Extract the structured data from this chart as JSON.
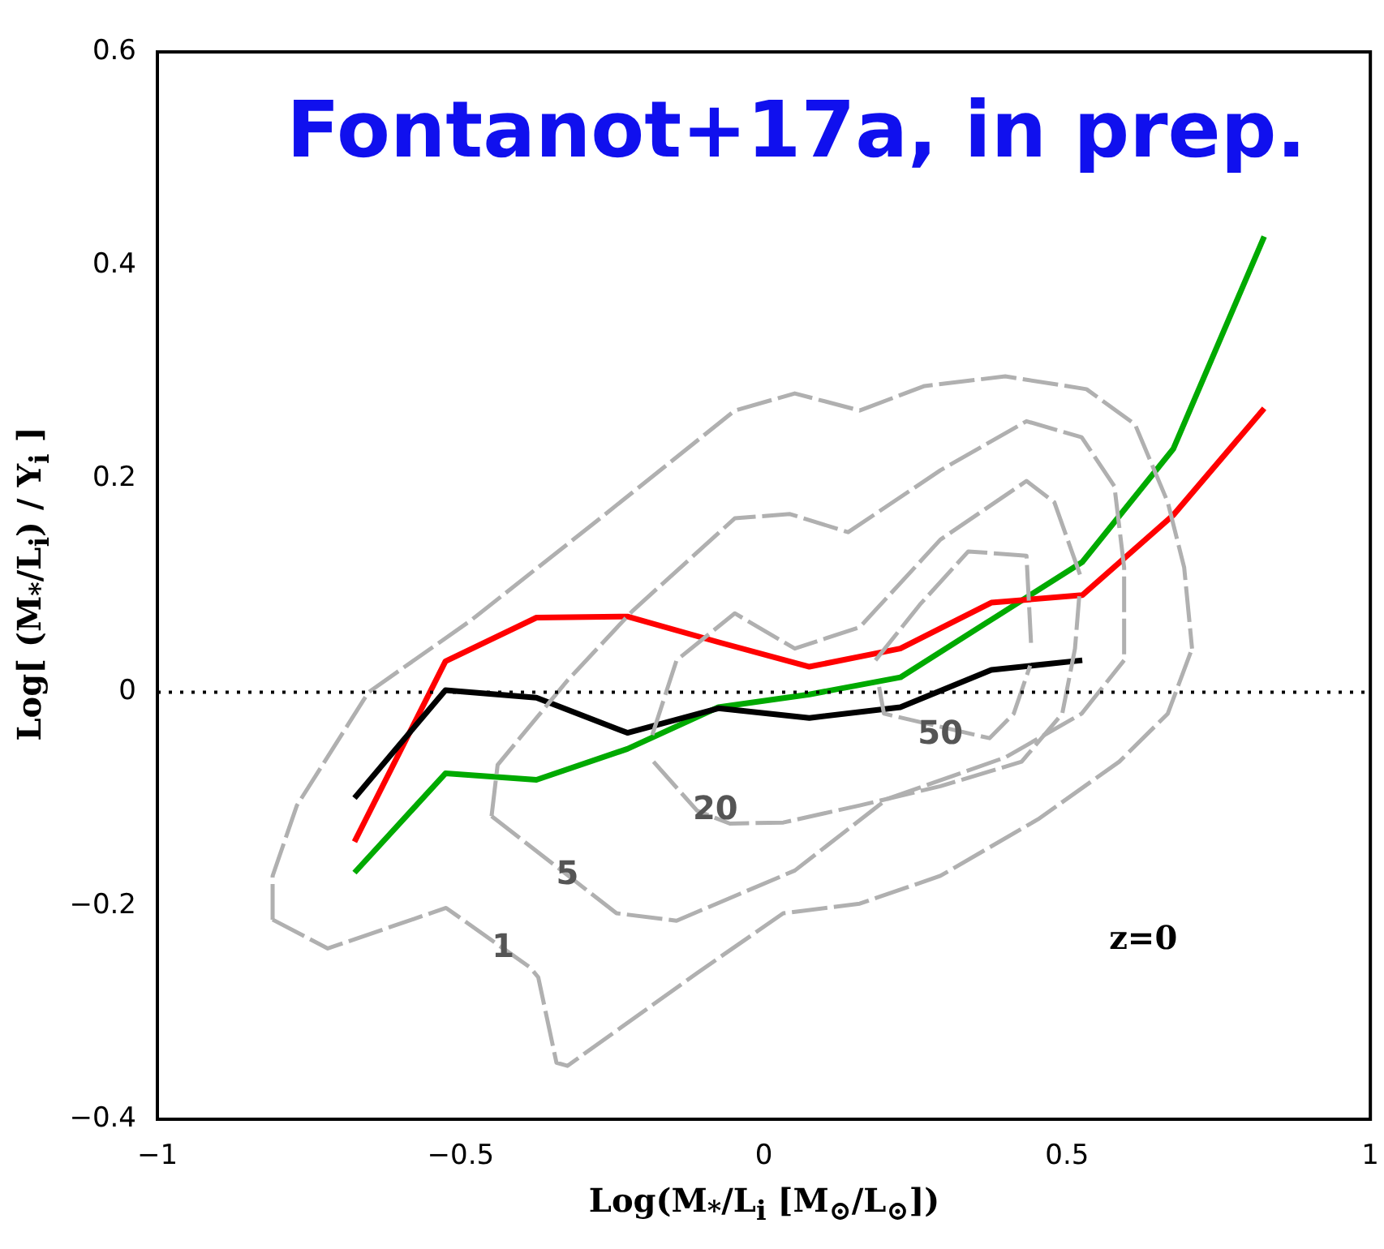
{
  "chart_data": {
    "type": "line",
    "title": "Fontanot+17a, in prep.",
    "xlabel": "Log(M$_{*}$/L$_{i}$ [M$_{⊙}$/L$_{⊙}$])",
    "ylabel": "Log[ (M$_{*}$/L$_{i}$) / Υ$_{i}$ ]",
    "xlim": [
      -1,
      1
    ],
    "xticks": [
      {
        "value": -1,
        "label": "−1"
      },
      {
        "value": -0.5,
        "label": "−0.5"
      },
      0,
      0.5,
      1
    ],
    "ylim": [
      -0.4,
      0.6
    ],
    "yticks": [
      {
        "value": -0.4,
        "label": "−0.4"
      },
      {
        "value": -0.2,
        "label": "−0.2"
      },
      0,
      0.2,
      0.4,
      0.6
    ],
    "grid": false,
    "legend": false,
    "marker": "none",
    "series": [
      {
        "color": "#b0b0b0",
        "line_style": "dashed",
        "x": [
          -0.81,
          -0.81,
          -0.77,
          -0.652,
          -0.484,
          -0.27,
          -0.048,
          0.051,
          0.158,
          0.265,
          0.398,
          0.532,
          0.612,
          0.666,
          0.693,
          0.706
        ],
        "values": [
          -0.213,
          -0.172,
          -0.106,
          0,
          0.067,
          0.163,
          0.264,
          0.28,
          0.264,
          0.287,
          0.296,
          0.284,
          0.251,
          0.178,
          0.117,
          0.041
        ]
      },
      {
        "color": "#b0b0b0",
        "line_style": "dashed",
        "x": [
          -0.81,
          -0.719,
          -0.524,
          -0.385,
          -0.372,
          -0.342,
          -0.324,
          -0.11,
          0.032,
          0.158,
          0.291,
          0.452,
          0.586,
          0.666,
          0.706
        ],
        "values": [
          -0.213,
          -0.24,
          -0.202,
          -0.258,
          -0.267,
          -0.347,
          -0.35,
          -0.263,
          -0.207,
          -0.198,
          -0.172,
          -0.119,
          -0.065,
          -0.02,
          0.041
        ]
      },
      {
        "color": "#b0b0b0",
        "line_style": "dashed",
        "x": [
          -0.449,
          -0.439,
          -0.324,
          -0.217,
          -0.048,
          0.043,
          0.139,
          0.291,
          0.433,
          0.524,
          0.578,
          0.594,
          0.594
        ],
        "values": [
          -0.116,
          -0.068,
          0.011,
          0.076,
          0.163,
          0.167,
          0.15,
          0.208,
          0.254,
          0.239,
          0.193,
          0.117,
          0.03
        ]
      },
      {
        "color": "#b0b0b0",
        "line_style": "dashed",
        "x": [
          -0.449,
          -0.243,
          -0.144,
          0.051,
          0.203,
          0.398,
          0.524,
          0.594
        ],
        "values": [
          -0.116,
          -0.207,
          -0.214,
          -0.167,
          -0.1,
          -0.061,
          -0.02,
          0.03
        ]
      },
      {
        "color": "#b0b0b0",
        "line_style": "dashed",
        "x": [
          -0.184,
          -0.144,
          -0.048,
          0.051,
          0.158,
          0.291,
          0.433,
          0.479,
          0.524
        ],
        "values": [
          -0.04,
          0.03,
          0.074,
          0.041,
          0.061,
          0.143,
          0.198,
          0.178,
          0.106
        ]
      },
      {
        "color": "#b0b0b0",
        "line_style": "dashed",
        "x": [
          -0.182,
          -0.11,
          -0.056,
          0.032,
          0.158,
          0.291,
          0.425,
          0.492,
          0.513,
          0.52
        ],
        "values": [
          -0.065,
          -0.111,
          -0.123,
          -0.122,
          -0.106,
          -0.088,
          -0.065,
          -0.02,
          0.041,
          0.09
        ]
      },
      {
        "color": "#b0b0b0",
        "line_style": "dashed",
        "x": [
          0.184,
          0.257,
          0.337,
          0.433,
          0.441
        ],
        "values": [
          0.03,
          0.082,
          0.132,
          0.128,
          0.041
        ]
      },
      {
        "color": "#b0b0b0",
        "line_style": "dashed",
        "x": [
          0.19,
          0.198,
          0.372,
          0.412,
          0.439
        ],
        "values": [
          0.005,
          -0.02,
          -0.043,
          -0.02,
          0.025
        ]
      },
      {
        "color": "#000000",
        "line_style": "solid",
        "x": [
          -0.675,
          -0.525,
          -0.375,
          -0.225,
          -0.075,
          0.075,
          0.225,
          0.375,
          0.525
        ],
        "values": [
          -0.099,
          0.002,
          -0.005,
          -0.038,
          -0.015,
          -0.024,
          -0.014,
          0.021,
          0.03
        ]
      },
      {
        "color": "#ff0000",
        "line_style": "solid",
        "x": [
          -0.675,
          -0.525,
          -0.375,
          -0.225,
          -0.075,
          0.075,
          0.225,
          0.375,
          0.525,
          0.675,
          0.825
        ],
        "values": [
          -0.14,
          0.029,
          0.07,
          0.071,
          0.047,
          0.024,
          0.041,
          0.084,
          0.091,
          0.166,
          0.266
        ]
      },
      {
        "color": "#00aa00",
        "line_style": "solid",
        "x": [
          -0.675,
          -0.525,
          -0.375,
          -0.225,
          -0.075,
          0.075,
          0.225,
          0.375,
          0.525,
          0.675,
          0.825
        ],
        "values": [
          -0.169,
          -0.076,
          -0.082,
          -0.053,
          -0.014,
          -0.002,
          0.014,
          0.068,
          0.122,
          0.228,
          0.427
        ]
      }
    ],
    "ref_lines": [
      {
        "axis": "y",
        "value": 0,
        "color": "#000000",
        "line_style": "dotted"
      }
    ],
    "annotations": [
      {
        "text": "1",
        "x": -0.43,
        "y": -0.24
      },
      {
        "text": "5",
        "x": -0.324,
        "y": -0.172
      },
      {
        "text": "20",
        "x": -0.08,
        "y": -0.111
      },
      {
        "text": "50",
        "x": 0.291,
        "y": -0.04
      },
      "z=0"
    ]
  }
}
